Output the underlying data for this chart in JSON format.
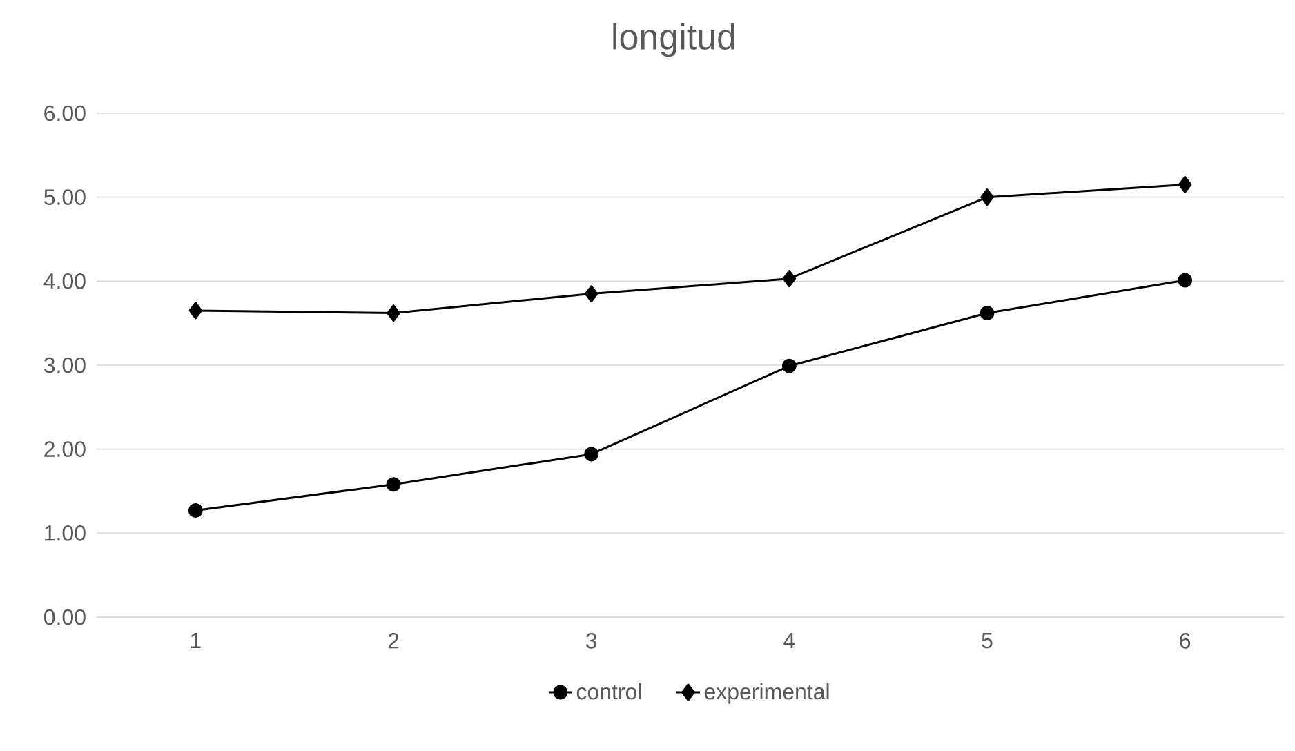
{
  "chart_data": {
    "type": "line",
    "title": "longitud",
    "categories": [
      "1",
      "2",
      "3",
      "4",
      "5",
      "6"
    ],
    "series": [
      {
        "name": "control",
        "color": "#000000",
        "marker": "circle",
        "values": [
          1.27,
          1.58,
          1.94,
          2.99,
          3.62,
          4.01
        ]
      },
      {
        "name": "experimental",
        "color": "#000000",
        "marker": "diamond",
        "values": [
          3.65,
          3.62,
          3.85,
          4.03,
          5.0,
          5.15
        ]
      }
    ],
    "ylim": [
      0,
      6
    ],
    "yticks": [
      {
        "value": 0,
        "label": "0.00"
      },
      {
        "value": 1,
        "label": "1.00"
      },
      {
        "value": 2,
        "label": "2.00"
      },
      {
        "value": 3,
        "label": "3.00"
      },
      {
        "value": 4,
        "label": "4.00"
      },
      {
        "value": 5,
        "label": "5.00"
      },
      {
        "value": 6,
        "label": "6.00"
      }
    ],
    "grid": "y",
    "legend": "bottom",
    "line_style": "solid"
  }
}
